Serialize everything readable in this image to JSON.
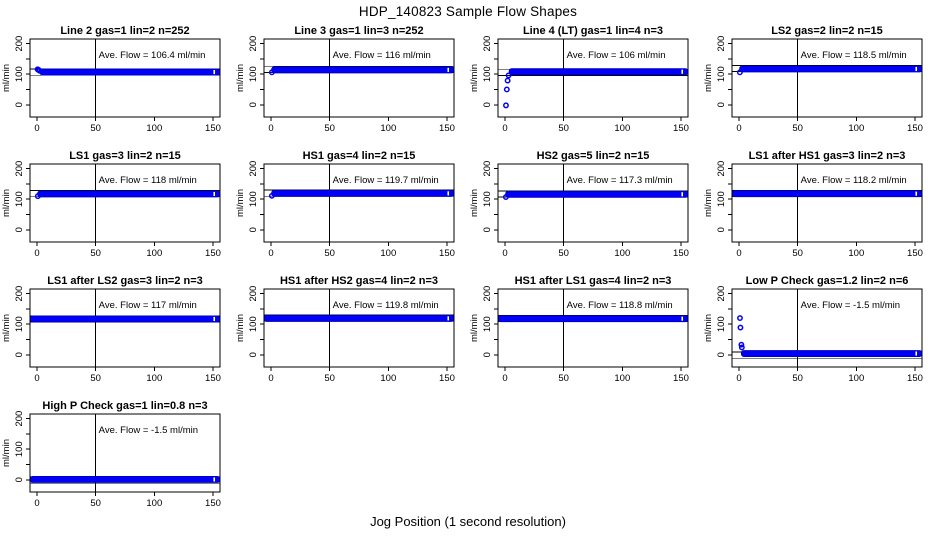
{
  "page": {
    "title": "HDP_140823  Sample Flow Shapes",
    "xlabel": "Jog Position (1 second resolution)"
  },
  "axes": {
    "ylabel": "ml/min",
    "xticks": [
      0,
      50,
      100,
      150
    ],
    "yticks_all": [
      0,
      50,
      100,
      150,
      200
    ],
    "yticks_labeled": [
      0,
      100,
      200
    ],
    "xlim": [
      -6,
      156
    ],
    "ylim": [
      -40,
      215
    ],
    "vline_x": 50,
    "tolerance_band": 10
  },
  "colors": {
    "points": "#0101fa",
    "points_edge": "#0000b0",
    "axis": "#000000",
    "background": "#ffffff"
  },
  "chart_data": {
    "type": "scatter",
    "title": "HDP_140823  Sample Flow Shapes",
    "xlabel": "Jog Position (1 second resolution)",
    "ylabel": "ml/min",
    "grid": false,
    "panels": [
      {
        "title": "Line 2 gas=1 lin=2 n=252",
        "ave_flow": 106.4,
        "n": 252,
        "annotation": "Ave. Flow =  106.4  ml/min",
        "band": {
          "x0": 2.5,
          "x1": 156,
          "y": 107,
          "half": 10
        },
        "start_points": [
          [
            0.5,
            116
          ],
          [
            1.3,
            114
          ],
          [
            2.2,
            111
          ]
        ]
      },
      {
        "title": "Line 3 gas=1 lin=3 n=252",
        "ave_flow": 116,
        "n": 252,
        "annotation": "Ave. Flow =  116  ml/min",
        "band": {
          "x0": 0.5,
          "x1": 156,
          "y": 114,
          "half": 10
        },
        "start_points": [
          [
            0.7,
            106
          ]
        ]
      },
      {
        "title": "Line 4 (LT) gas=1 lin=4 n=3",
        "ave_flow": 106,
        "n": 3,
        "annotation": "Ave. Flow =  106  ml/min",
        "band": {
          "x0": 3.5,
          "x1": 156,
          "y": 108,
          "half": 10
        },
        "start_points": [
          [
            0.8,
            -2
          ],
          [
            1.5,
            50
          ],
          [
            2.2,
            79
          ],
          [
            3.0,
            96
          ]
        ]
      },
      {
        "title": "LS2 gas=2 lin=2 n=15",
        "ave_flow": 118.5,
        "n": 15,
        "annotation": "Ave. Flow =  118.5  ml/min",
        "band": {
          "x0": 0.5,
          "x1": 156,
          "y": 117,
          "half": 10
        },
        "start_points": [
          [
            0.7,
            106
          ]
        ]
      },
      {
        "title": "LS1 gas=3 lin=2 n=15",
        "ave_flow": 118,
        "n": 15,
        "annotation": "Ave. Flow =  118  ml/min",
        "band": {
          "x0": 0.5,
          "x1": 156,
          "y": 117,
          "half": 10
        },
        "start_points": [
          [
            0.7,
            110
          ]
        ]
      },
      {
        "title": "HS1 gas=4 lin=2 n=15",
        "ave_flow": 119.7,
        "n": 15,
        "annotation": "Ave. Flow =  119.7  ml/min",
        "band": {
          "x0": 0.5,
          "x1": 156,
          "y": 119,
          "half": 10
        },
        "start_points": [
          [
            0.7,
            111
          ]
        ]
      },
      {
        "title": "HS2 gas=5 lin=2 n=15",
        "ave_flow": 117.3,
        "n": 15,
        "annotation": "Ave. Flow =  117.3  ml/min",
        "band": {
          "x0": 0.5,
          "x1": 156,
          "y": 116,
          "half": 10
        },
        "start_points": [
          [
            0.7,
            107
          ]
        ]
      },
      {
        "title": "LS1 after HS1 gas=3 lin=2 n=3",
        "ave_flow": 118.2,
        "n": 3,
        "annotation": "Ave. Flow =  118.2  ml/min",
        "band": {
          "x0": -6,
          "x1": 156,
          "y": 118,
          "half": 10
        },
        "start_points": []
      },
      {
        "title": "LS1 after LS2 gas=3 lin=2 n=3",
        "ave_flow": 117,
        "n": 3,
        "annotation": "Ave. Flow =  117  ml/min",
        "band": {
          "x0": -6,
          "x1": 156,
          "y": 117,
          "half": 10
        },
        "start_points": []
      },
      {
        "title": "HS1 after HS2 gas=4 lin=2 n=3",
        "ave_flow": 119.8,
        "n": 3,
        "annotation": "Ave. Flow =  119.8  ml/min",
        "band": {
          "x0": -6,
          "x1": 156,
          "y": 119,
          "half": 10
        },
        "start_points": []
      },
      {
        "title": "HS1 after LS1 gas=4 lin=2 n=3",
        "ave_flow": 118.8,
        "n": 3,
        "annotation": "Ave. Flow =  118.8  ml/min",
        "band": {
          "x0": -6,
          "x1": 156,
          "y": 118,
          "half": 10
        },
        "start_points": []
      },
      {
        "title": "Low P Check gas=1.2 lin=2 n=6",
        "ave_flow": -1.5,
        "n": 6,
        "annotation": "Ave. Flow =  -1.5  ml/min",
        "band": {
          "x0": 2,
          "x1": 156,
          "y": 4,
          "half": 10
        },
        "start_points": [
          [
            0.8,
            120
          ],
          [
            1.2,
            89
          ],
          [
            2.0,
            33
          ],
          [
            2.4,
            24
          ]
        ]
      },
      {
        "title": "High P Check gas=1 lin=0.8 n=3",
        "ave_flow": -1.5,
        "n": 3,
        "annotation": "Ave. Flow =  -1.5  ml/min",
        "band": {
          "x0": -6,
          "x1": 156,
          "y": 1,
          "half": 10
        },
        "start_points": []
      }
    ]
  }
}
